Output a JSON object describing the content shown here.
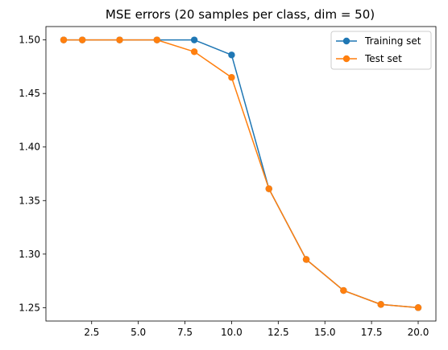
{
  "chart_data": {
    "type": "line",
    "title": "MSE errors (20 samples per class, dim = 50)",
    "xlabel": "",
    "ylabel": "",
    "xlim": [
      0.05,
      20.95
    ],
    "ylim": [
      1.2375,
      1.5125
    ],
    "x_ticks": [
      2.5,
      5.0,
      7.5,
      10.0,
      12.5,
      15.0,
      17.5,
      20.0
    ],
    "x_tick_labels": [
      "2.5",
      "5.0",
      "7.5",
      "10.0",
      "12.5",
      "15.0",
      "17.5",
      "20.0"
    ],
    "y_ticks": [
      1.25,
      1.3,
      1.35,
      1.4,
      1.45,
      1.5
    ],
    "y_tick_labels": [
      "1.25",
      "1.30",
      "1.35",
      "1.40",
      "1.45",
      "1.50"
    ],
    "grid": false,
    "legend_position": "top-right",
    "series": [
      {
        "name": "Training set",
        "color": "#1f77b4",
        "marker": "circle",
        "x": [
          1,
          2,
          4,
          6,
          8,
          10,
          12,
          14,
          16,
          18,
          20
        ],
        "y": [
          1.5,
          1.5,
          1.5,
          1.5,
          1.5,
          1.486,
          1.361,
          1.295,
          1.266,
          1.253,
          1.25
        ]
      },
      {
        "name": "Test set",
        "color": "#ff7f0e",
        "marker": "circle",
        "x": [
          1,
          2,
          4,
          6,
          8,
          10,
          12,
          14,
          16,
          18,
          20
        ],
        "y": [
          1.5,
          1.5,
          1.5,
          1.5,
          1.489,
          1.465,
          1.361,
          1.295,
          1.266,
          1.253,
          1.25
        ]
      }
    ]
  }
}
